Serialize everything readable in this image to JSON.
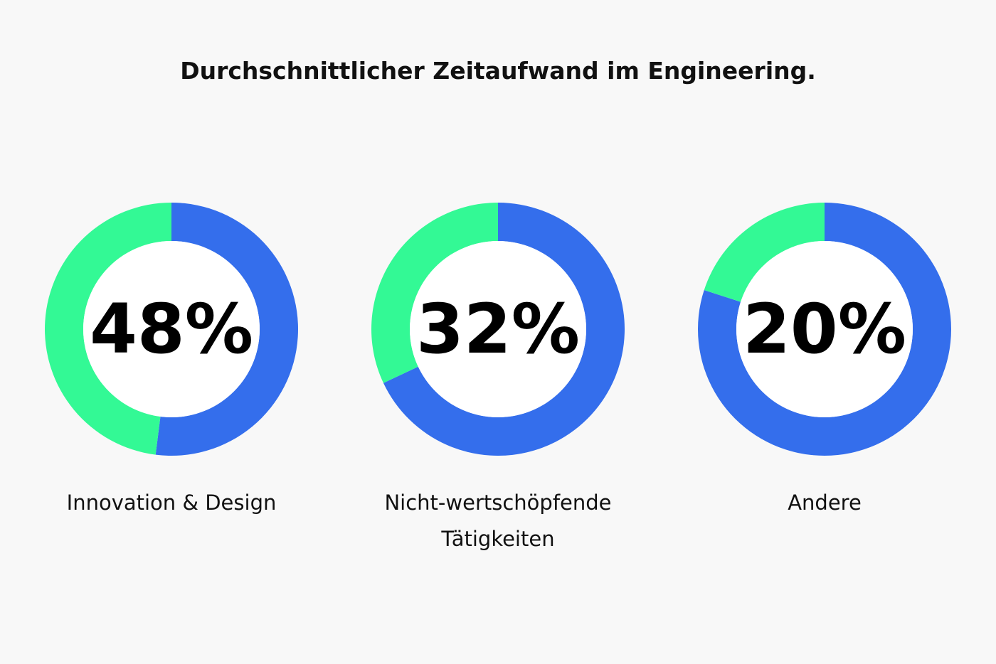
{
  "title": "Durchschnittlicher Zeitaufwand im Engineering.",
  "colors": {
    "highlight": "#33f995",
    "remainder": "#346eec",
    "inner": "#ffffff"
  },
  "chart_data": [
    {
      "type": "pie",
      "variant": "donut",
      "value_label": "48%",
      "values": [
        48,
        52
      ],
      "label": "Innovation & Design"
    },
    {
      "type": "pie",
      "variant": "donut",
      "value_label": "32%",
      "values": [
        32,
        68
      ],
      "label": "Nicht-wertschöpfende Tätigkeiten"
    },
    {
      "type": "pie",
      "variant": "donut",
      "value_label": "20%",
      "values": [
        20,
        80
      ],
      "label": "Andere"
    }
  ]
}
